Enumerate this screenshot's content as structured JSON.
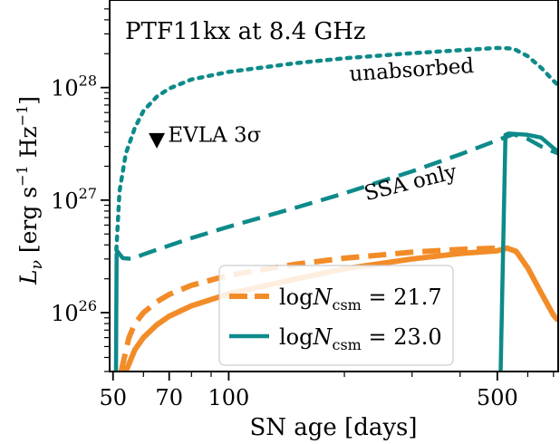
{
  "chart_data": {
    "type": "line",
    "title": "PTF11kx at 8.4 GHz",
    "xlabel": "SN age [days]",
    "ylabel": "L_ν [erg s⁻¹ Hz⁻¹]",
    "x_scale": "log",
    "y_scale": "log",
    "xlim": [
      49,
      720
    ],
    "ylim": [
      3e+25,
      6e+28
    ],
    "x_ticks": [
      50,
      70,
      100,
      500
    ],
    "y_ticks": [
      "10^26",
      "10^27",
      "10^28"
    ],
    "colors": {
      "orange": "#F28C28",
      "teal": "#0E8A8A"
    },
    "series": [
      {
        "name": "unabsorbed",
        "color": "#0E8A8A",
        "style": "dotted",
        "points": [
          [
            51,
            3.6e+26
          ],
          [
            52,
            1.2e+27
          ],
          [
            54,
            2.6e+27
          ],
          [
            57,
            4.4e+27
          ],
          [
            60,
            6.2e+27
          ],
          [
            65,
            8.3e+27
          ],
          [
            70,
            9.8e+27
          ],
          [
            80,
            1.18e+28
          ],
          [
            100,
            1.38e+28
          ],
          [
            150,
            1.65e+28
          ],
          [
            200,
            1.82e+28
          ],
          [
            300,
            2.02e+28
          ],
          [
            400,
            2.15e+28
          ],
          [
            500,
            2.25e+28
          ],
          [
            550,
            2.22e+28
          ],
          [
            600,
            1.9e+28
          ],
          [
            650,
            1.5e+28
          ],
          [
            700,
            1.15e+28
          ],
          [
            720,
            1.05e+28
          ]
        ]
      },
      {
        "name": "SSA only",
        "color": "#0E8A8A",
        "style": "dashed",
        "points": [
          [
            51,
            3.6e+26
          ],
          [
            53,
            3.05e+26
          ],
          [
            56,
            3e+26
          ],
          [
            60,
            3.3e+26
          ],
          [
            70,
            3.95e+26
          ],
          [
            80,
            4.6e+26
          ],
          [
            100,
            5.8e+26
          ],
          [
            150,
            8.6e+26
          ],
          [
            200,
            1.15e+27
          ],
          [
            300,
            1.8e+27
          ],
          [
            400,
            2.55e+27
          ],
          [
            500,
            3.4e+27
          ],
          [
            550,
            3.85e+27
          ],
          [
            600,
            3.5e+27
          ],
          [
            650,
            3e+27
          ],
          [
            700,
            2.7e+27
          ],
          [
            720,
            2.6e+27
          ]
        ]
      },
      {
        "name": "logN_csm = 21.7 (SSA only)",
        "color": "#F28C28",
        "style": "dashed",
        "points": [
          [
            52.5,
            3e+25
          ],
          [
            55,
            6e+25
          ],
          [
            57,
            8e+25
          ],
          [
            60,
            1e+26
          ],
          [
            65,
            1.25e+26
          ],
          [
            70,
            1.45e+26
          ],
          [
            80,
            1.75e+26
          ],
          [
            100,
            2.15e+26
          ],
          [
            150,
            2.7e+26
          ],
          [
            200,
            3.05e+26
          ],
          [
            300,
            3.45e+26
          ],
          [
            400,
            3.65e+26
          ],
          [
            500,
            3.75e+26
          ]
        ]
      },
      {
        "name": "logN_csm = 21.7 (unabsorbed)",
        "color": "#F28C28",
        "style": "solid",
        "points": [
          [
            54,
            3e+25
          ],
          [
            57,
            4.7e+25
          ],
          [
            60,
            6e+25
          ],
          [
            65,
            7.8e+25
          ],
          [
            70,
            9.3e+25
          ],
          [
            80,
            1.15e+26
          ],
          [
            100,
            1.47e+26
          ],
          [
            150,
            2e+26
          ],
          [
            200,
            2.45e+26
          ],
          [
            300,
            3e+26
          ],
          [
            400,
            3.35e+26
          ],
          [
            500,
            3.55e+26
          ],
          [
            530,
            3.75e+26
          ],
          [
            560,
            3.5e+26
          ],
          [
            600,
            2.5e+26
          ],
          [
            650,
            1.5e+26
          ],
          [
            700,
            9.5e+25
          ],
          [
            720,
            8.5e+25
          ]
        ]
      },
      {
        "name": "logN_csm = 23.0 (SSA only)",
        "color": "#0E8A8A",
        "style": "solid",
        "points": [
          [
            50.9,
            3e+25
          ],
          [
            51.1,
            3.3e+26
          ],
          [
            51.6,
            3.6e+26
          ]
        ]
      },
      {
        "name": "logN_csm = 23.0 (unabsorbed)",
        "color": "#0E8A8A",
        "style": "solid",
        "points": [
          [
            510,
            3e+25
          ],
          [
            525,
            3.8e+27
          ],
          [
            535,
            3.9e+27
          ],
          [
            600,
            3.8e+27
          ],
          [
            650,
            3.6e+27
          ],
          [
            700,
            2.9e+27
          ],
          [
            720,
            2.7e+27
          ]
        ]
      }
    ],
    "annotations": [
      {
        "text": "unabsorbed",
        "x": 300,
        "y": 1.25e+28,
        "rotation": -4
      },
      {
        "text": "SSA only",
        "x": 300,
        "y": 1.25e+27,
        "rotation": -14
      },
      {
        "text": "EVLA 3σ",
        "x": 69.5,
        "y": 3.3e+27,
        "marker": "down-triangle",
        "marker_x": 65,
        "marker_y": 3.4e+27
      }
    ],
    "legend": {
      "placement": "lower-center",
      "entries": [
        {
          "label": "logN_csm = 21.7",
          "color": "#F28C28",
          "style": "dashed"
        },
        {
          "label": "logN_csm = 23.0",
          "color": "#0E8A8A",
          "style": "solid"
        }
      ]
    }
  }
}
